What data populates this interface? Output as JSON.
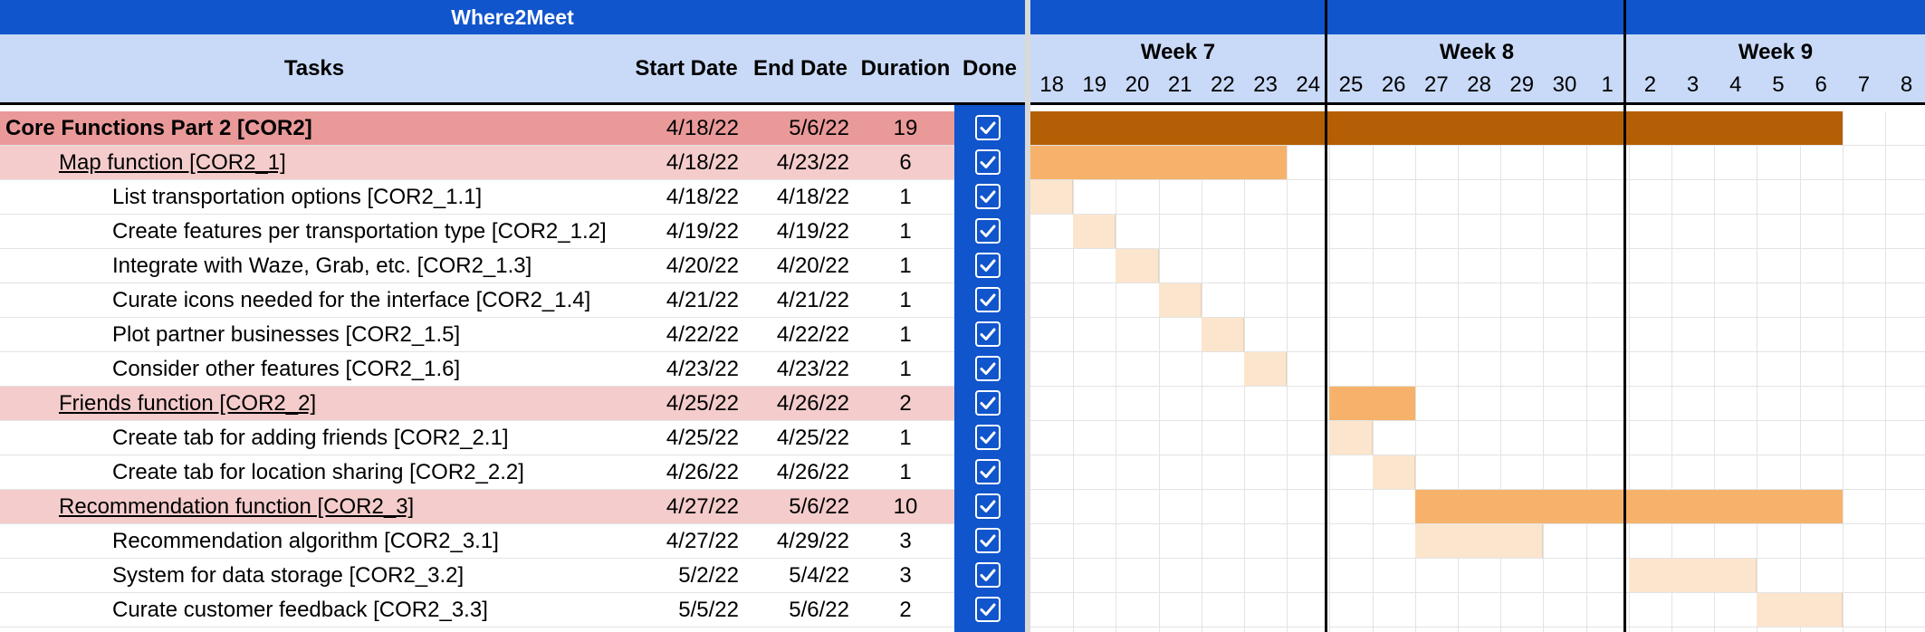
{
  "sheet": {
    "title": "Where2Meet",
    "columns": {
      "tasks": "Tasks",
      "start": "Start Date",
      "end": "End Date",
      "duration": "Duration",
      "done": "Done"
    }
  },
  "timeline": {
    "weeks": [
      "Week 7",
      "Week 8",
      "Week 9"
    ],
    "days": [
      "18",
      "19",
      "20",
      "21",
      "22",
      "23",
      "24",
      "25",
      "26",
      "27",
      "28",
      "29",
      "30",
      "1",
      "2",
      "3",
      "4",
      "5",
      "6",
      "7",
      "8"
    ]
  },
  "colors": {
    "banner": "#1155cc",
    "header": "#c9daf8",
    "parent_row": "#ea9999",
    "subgroup_row": "#f4cccc",
    "parent_bar": "#b45f06",
    "subgroup_bar": "#f6b26b",
    "task_bar": "#fce5cd",
    "done_column": "#1155cc"
  },
  "rows": [
    {
      "level": 0,
      "task": "Core Functions Part 2 [COR2]",
      "start": "4/18/22",
      "end": "5/6/22",
      "duration": "19",
      "done": true,
      "bar_start_day": 0,
      "bar_days": 19
    },
    {
      "level": 1,
      "task": "Map function  [COR2_1]",
      "start": "4/18/22",
      "end": "4/23/22",
      "duration": "6",
      "done": true,
      "bar_start_day": 0,
      "bar_days": 6
    },
    {
      "level": 2,
      "task": "List transportation options [COR2_1.1]",
      "start": "4/18/22",
      "end": "4/18/22",
      "duration": "1",
      "done": true,
      "bar_start_day": 0,
      "bar_days": 1
    },
    {
      "level": 2,
      "task": "Create features per transportation type [COR2_1.2]",
      "start": "4/19/22",
      "end": "4/19/22",
      "duration": "1",
      "done": true,
      "bar_start_day": 1,
      "bar_days": 1
    },
    {
      "level": 2,
      "task": "Integrate with Waze, Grab, etc. [COR2_1.3]",
      "start": "4/20/22",
      "end": "4/20/22",
      "duration": "1",
      "done": true,
      "bar_start_day": 2,
      "bar_days": 1
    },
    {
      "level": 2,
      "task": "Curate icons needed for the interface [COR2_1.4]",
      "start": "4/21/22",
      "end": "4/21/22",
      "duration": "1",
      "done": true,
      "bar_start_day": 3,
      "bar_days": 1
    },
    {
      "level": 2,
      "task": "Plot partner businesses [COR2_1.5]",
      "start": "4/22/22",
      "end": "4/22/22",
      "duration": "1",
      "done": true,
      "bar_start_day": 4,
      "bar_days": 1
    },
    {
      "level": 2,
      "task": "Consider other features [COR2_1.6]",
      "start": "4/23/22",
      "end": "4/23/22",
      "duration": "1",
      "done": true,
      "bar_start_day": 5,
      "bar_days": 1
    },
    {
      "level": 1,
      "task": "Friends function [COR2_2]",
      "start": "4/25/22",
      "end": "4/26/22",
      "duration": "2",
      "done": true,
      "bar_start_day": 7,
      "bar_days": 2
    },
    {
      "level": 2,
      "task": "Create tab for adding friends [COR2_2.1]",
      "start": "4/25/22",
      "end": "4/25/22",
      "duration": "1",
      "done": true,
      "bar_start_day": 7,
      "bar_days": 1
    },
    {
      "level": 2,
      "task": "Create tab for location sharing [COR2_2.2]",
      "start": "4/26/22",
      "end": "4/26/22",
      "duration": "1",
      "done": true,
      "bar_start_day": 8,
      "bar_days": 1
    },
    {
      "level": 1,
      "task": "Recommendation function [COR2_3]",
      "start": "4/27/22",
      "end": "5/6/22",
      "duration": "10",
      "done": true,
      "bar_start_day": 9,
      "bar_days": 10
    },
    {
      "level": 2,
      "task": "Recommendation algorithm [COR2_3.1]",
      "start": "4/27/22",
      "end": "4/29/22",
      "duration": "3",
      "done": true,
      "bar_start_day": 9,
      "bar_days": 3
    },
    {
      "level": 2,
      "task": "System for data storage [COR2_3.2]",
      "start": "5/2/22",
      "end": "5/4/22",
      "duration": "3",
      "done": true,
      "bar_start_day": 14,
      "bar_days": 3
    },
    {
      "level": 2,
      "task": "Curate customer feedback [COR2_3.3]",
      "start": "5/5/22",
      "end": "5/6/22",
      "duration": "2",
      "done": true,
      "bar_start_day": 17,
      "bar_days": 2
    }
  ]
}
